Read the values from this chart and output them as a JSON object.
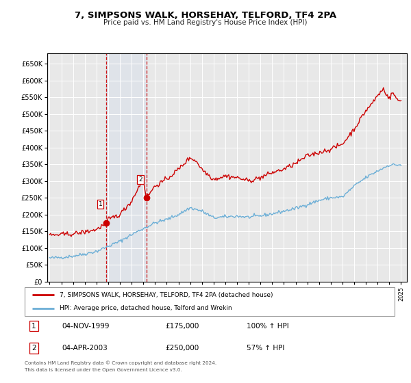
{
  "title": "7, SIMPSONS WALK, HORSEHAY, TELFORD, TF4 2PA",
  "subtitle": "Price paid vs. HM Land Registry's House Price Index (HPI)",
  "legend_line1": "7, SIMPSONS WALK, HORSEHAY, TELFORD, TF4 2PA (detached house)",
  "legend_line2": "HPI: Average price, detached house, Telford and Wrekin",
  "transaction1_label": "1",
  "transaction1_date": "04-NOV-1999",
  "transaction1_price": "£175,000",
  "transaction1_hpi": "100% ↑ HPI",
  "transaction2_label": "2",
  "transaction2_date": "04-APR-2003",
  "transaction2_price": "£250,000",
  "transaction2_hpi": "57% ↑ HPI",
  "footnote1": "Contains HM Land Registry data © Crown copyright and database right 2024.",
  "footnote2": "This data is licensed under the Open Government Licence v3.0.",
  "hpi_color": "#6baed6",
  "price_color": "#cc0000",
  "transaction1_x": 1999.84,
  "transaction1_y": 175000,
  "transaction2_x": 2003.26,
  "transaction2_y": 250000,
  "shaded_xmin": 1999.84,
  "shaded_xmax": 2003.26,
  "ylim": [
    0,
    680000
  ],
  "xlim": [
    1994.8,
    2025.5
  ],
  "yticks": [
    0,
    50000,
    100000,
    150000,
    200000,
    250000,
    300000,
    350000,
    400000,
    450000,
    500000,
    550000,
    600000,
    650000
  ],
  "xticks": [
    1995,
    1996,
    1997,
    1998,
    1999,
    2000,
    2001,
    2002,
    2003,
    2004,
    2005,
    2006,
    2007,
    2008,
    2009,
    2010,
    2011,
    2012,
    2013,
    2014,
    2015,
    2016,
    2017,
    2018,
    2019,
    2020,
    2021,
    2022,
    2023,
    2024,
    2025
  ],
  "background_color": "#ffffff",
  "plot_bg_color": "#e8e8e8"
}
